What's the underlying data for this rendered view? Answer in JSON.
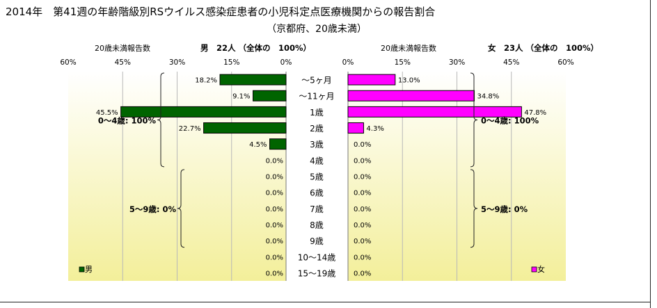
{
  "chart_data": {
    "type": "bar",
    "title": "2014年　第41週の年齢階級別RSウイルス感染症患者の小児科定点医療機関からの報告割合",
    "subtitle": "（京都府、20歳未満）",
    "categories": [
      "～5ヶ月",
      "～11ヶ月",
      "1歳",
      "2歳",
      "3歳",
      "4歳",
      "5歳",
      "6歳",
      "7歳",
      "8歳",
      "9歳",
      "10～14歳",
      "15～19歳"
    ],
    "xlim": [
      0,
      60
    ],
    "ticks": [
      60,
      45,
      30,
      15,
      0
    ],
    "ticks_right": [
      0,
      15,
      30,
      45,
      60
    ],
    "tick_suffix": "%",
    "grid": true,
    "series": [
      {
        "name": "男",
        "side": "left",
        "color": "#006400",
        "axis_label": "20歳未満報告数",
        "header": "男　22人 （全体の　100%）",
        "values": [
          18.2,
          9.1,
          45.5,
          22.7,
          4.5,
          0.0,
          0.0,
          0.0,
          0.0,
          0.0,
          0.0,
          0.0,
          0.0
        ],
        "value_labels": [
          "18.2%",
          "9.1%",
          "45.5%",
          "22.7%",
          "4.5%",
          "0.0%",
          "0.0%",
          "0.0%",
          "0.0%",
          "0.0%",
          "0.0%",
          "0.0%",
          "0.0%"
        ],
        "legend": "男",
        "groups": [
          {
            "label": "0～4歳: 100%",
            "from": 0,
            "to": 5
          },
          {
            "label": "5～9歳: 0%",
            "from": 6,
            "to": 10
          }
        ]
      },
      {
        "name": "女",
        "side": "right",
        "color": "#ff00ff",
        "axis_label": "20歳未満報告数",
        "header": "女　23人 （全体の　100%）",
        "values": [
          13.0,
          34.8,
          47.8,
          4.3,
          0.0,
          0.0,
          0.0,
          0.0,
          0.0,
          0.0,
          0.0,
          0.0,
          0.0
        ],
        "value_labels": [
          "13.0%",
          "34.8%",
          "47.8%",
          "4.3%",
          "0.0%",
          "0.0%",
          "0.0%",
          "0.0%",
          "0.0%",
          "0.0%",
          "0.0%",
          "0.0%",
          "0.0%"
        ],
        "legend": "女",
        "groups": [
          {
            "label": "0～4歳: 100%",
            "from": 0,
            "to": 5
          },
          {
            "label": "5～9歳: 0%",
            "from": 6,
            "to": 10
          }
        ]
      }
    ]
  }
}
